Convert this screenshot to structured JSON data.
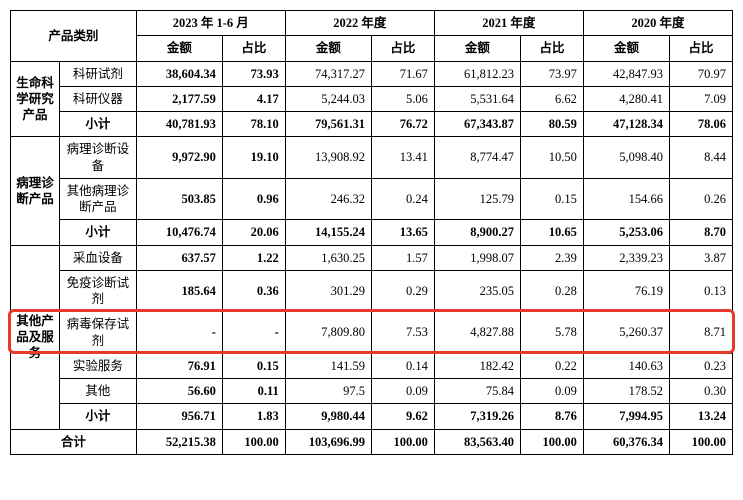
{
  "colors": {
    "border": "#000000",
    "highlight_border": "#e83a2a",
    "background": "#ffffff",
    "text": "#000000"
  },
  "typography": {
    "font_family": "SimSun",
    "base_size_pt": 12.5
  },
  "header": {
    "cat_label": "产品类别",
    "periods": [
      "2023 年 1-6 月",
      "2022 年度",
      "2021 年度",
      "2020 年度"
    ],
    "sub": {
      "amount": "金额",
      "pct": "占比"
    }
  },
  "groups": [
    {
      "name": "生命科学研究产品",
      "rows": [
        {
          "label": "科研试剂",
          "v": [
            "38,604.34",
            "73.93",
            "74,317.27",
            "71.67",
            "61,812.23",
            "73.97",
            "42,847.93",
            "70.97"
          ]
        },
        {
          "label": "科研仪器",
          "v": [
            "2,177.59",
            "4.17",
            "5,244.03",
            "5.06",
            "5,531.64",
            "6.62",
            "4,280.41",
            "7.09"
          ]
        }
      ],
      "subtotal": {
        "label": "小计",
        "v": [
          "40,781.93",
          "78.10",
          "79,561.31",
          "76.72",
          "67,343.87",
          "80.59",
          "47,128.34",
          "78.06"
        ]
      }
    },
    {
      "name": "病理诊断产品",
      "rows": [
        {
          "label": "病理诊断设备",
          "v": [
            "9,972.90",
            "19.10",
            "13,908.92",
            "13.41",
            "8,774.47",
            "10.50",
            "5,098.40",
            "8.44"
          ]
        },
        {
          "label": "其他病理诊断产品",
          "v": [
            "503.85",
            "0.96",
            "246.32",
            "0.24",
            "125.79",
            "0.15",
            "154.66",
            "0.26"
          ]
        }
      ],
      "subtotal": {
        "label": "小计",
        "v": [
          "10,476.74",
          "20.06",
          "14,155.24",
          "13.65",
          "8,900.27",
          "10.65",
          "5,253.06",
          "8.70"
        ]
      }
    },
    {
      "name": "其他产品及服务",
      "rows": [
        {
          "label": "采血设备",
          "v": [
            "637.57",
            "1.22",
            "1,630.25",
            "1.57",
            "1,998.07",
            "2.39",
            "2,339.23",
            "3.87"
          ]
        },
        {
          "label": "免疫诊断试剂",
          "v": [
            "185.64",
            "0.36",
            "301.29",
            "0.29",
            "235.05",
            "0.28",
            "76.19",
            "0.13"
          ]
        },
        {
          "label": "病毒保存试剂",
          "highlight": true,
          "v": [
            "-",
            "-",
            "7,809.80",
            "7.53",
            "4,827.88",
            "5.78",
            "5,260.37",
            "8.71"
          ]
        },
        {
          "label": "实验服务",
          "v": [
            "76.91",
            "0.15",
            "141.59",
            "0.14",
            "182.42",
            "0.22",
            "140.63",
            "0.23"
          ]
        },
        {
          "label": "其他",
          "v": [
            "56.60",
            "0.11",
            "97.5",
            "0.09",
            "75.84",
            "0.09",
            "178.52",
            "0.30"
          ]
        }
      ],
      "subtotal": {
        "label": "小计",
        "v": [
          "956.71",
          "1.83",
          "9,980.44",
          "9.62",
          "7,319.26",
          "8.76",
          "7,994.95",
          "13.24"
        ]
      }
    }
  ],
  "total": {
    "label": "合计",
    "v": [
      "52,215.38",
      "100.00",
      "103,696.99",
      "100.00",
      "83,563.40",
      "100.00",
      "60,376.34",
      "100.00"
    ]
  }
}
